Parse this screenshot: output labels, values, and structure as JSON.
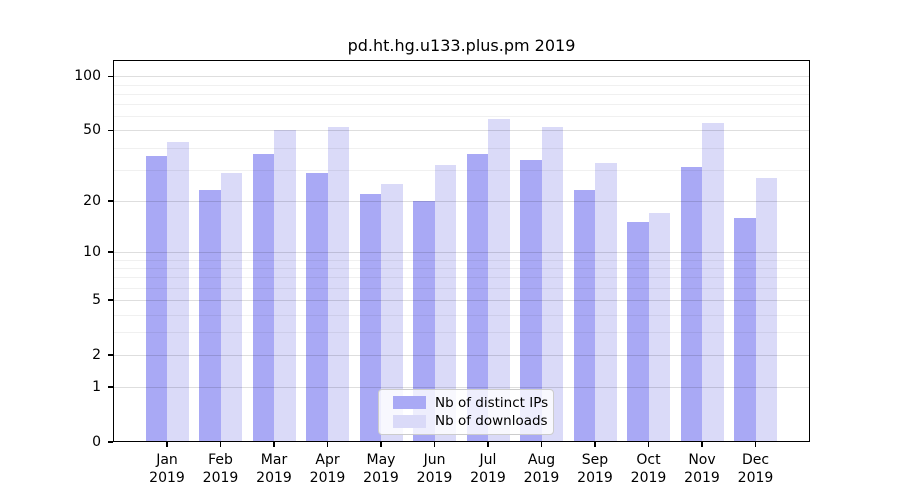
{
  "figure": {
    "background": "#ffffff"
  },
  "chart_data": {
    "type": "bar",
    "title": "pd.ht.hg.u133.plus.pm 2019",
    "categories": [
      "Jan",
      "Feb",
      "Mar",
      "Apr",
      "May",
      "Jun",
      "Jul",
      "Aug",
      "Sep",
      "Oct",
      "Nov",
      "Dec"
    ],
    "x_tick_year": "2019",
    "series": [
      {
        "name": "Nb of distinct IPs",
        "color": "#a9a9f5",
        "values": [
          36,
          23,
          37,
          29,
          22,
          20,
          37,
          34,
          23,
          15,
          31,
          16
        ]
      },
      {
        "name": "Nb of downloads",
        "color": "#dadaf8",
        "values": [
          43,
          29,
          50,
          52,
          25,
          32,
          58,
          52,
          33,
          17,
          55,
          27
        ]
      }
    ],
    "xlabel": "",
    "ylabel": "",
    "yscale": "log1p",
    "ylim": [
      0,
      123
    ],
    "yticks": [
      0,
      1,
      2,
      5,
      10,
      20,
      50,
      100
    ],
    "minor_gridlines": [
      3,
      4,
      6,
      7,
      8,
      9,
      30,
      40,
      60,
      70,
      80,
      90
    ],
    "grid": true,
    "grid_over_bars": true,
    "legend_position": "lower-center",
    "axis_color": "#000000"
  }
}
